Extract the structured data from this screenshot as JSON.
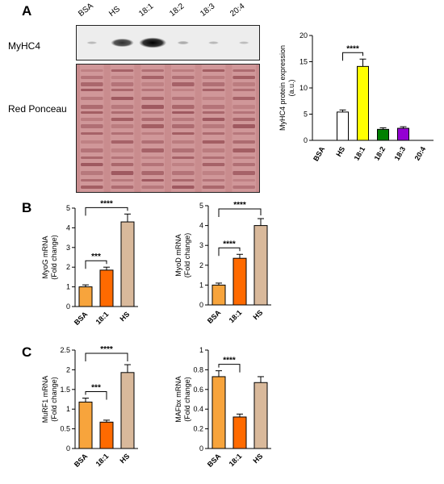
{
  "panels": {
    "A": "A",
    "B": "B",
    "C": "C"
  },
  "blot": {
    "lanes": [
      "BSA",
      "HS",
      "18:1",
      "18:2",
      "18:3",
      "20:4"
    ],
    "myhc4_label": "MyHC4",
    "ponceau_label": "Red Ponceau",
    "myhc4_band_intensity": [
      0.05,
      0.75,
      1.0,
      0.12,
      0.06,
      0.04
    ]
  },
  "chart_data": [
    {
      "id": "A",
      "type": "bar",
      "categories": [
        "BSA",
        "HS",
        "18:1",
        "18:2",
        "18:3",
        "20:4"
      ],
      "values": [
        0,
        5.4,
        14.1,
        2.1,
        2.3,
        0
      ],
      "errors": [
        0,
        0.4,
        1.4,
        0.3,
        0.3,
        0
      ],
      "colors": [
        "#ffffff",
        "#ffffff",
        "#ffff00",
        "#008000",
        "#9400d3",
        "#ffffff"
      ],
      "ylabel": "MyHC4 protein expression\n(a.u.)",
      "ylim": [
        0,
        20
      ],
      "yticks": [
        0,
        5,
        10,
        15,
        20
      ],
      "significance": [
        {
          "from": "HS",
          "to": "18:1",
          "label": "****"
        }
      ]
    },
    {
      "id": "B1",
      "type": "bar",
      "categories": [
        "BSA",
        "18:1",
        "HS"
      ],
      "values": [
        1.0,
        1.85,
        4.3
      ],
      "errors": [
        0.1,
        0.15,
        0.4
      ],
      "colors": [
        "#f7a43c",
        "#ff6a00",
        "#d9b99b"
      ],
      "ylabel": "MyoG mRNA\n(Fold change)",
      "ylim": [
        0,
        5
      ],
      "yticks": [
        0,
        1,
        2,
        3,
        4,
        5
      ],
      "significance": [
        {
          "from": "BSA",
          "to": "18:1",
          "label": "***"
        },
        {
          "from": "BSA",
          "to": "HS",
          "label": "****"
        }
      ]
    },
    {
      "id": "B2",
      "type": "bar",
      "categories": [
        "BSA",
        "18:1",
        "HS"
      ],
      "values": [
        1.0,
        2.35,
        4.0
      ],
      "errors": [
        0.1,
        0.2,
        0.35
      ],
      "colors": [
        "#f7a43c",
        "#ff6a00",
        "#d9b99b"
      ],
      "ylabel": "MyoD mRNA\n(Fold change)",
      "ylim": [
        0,
        5
      ],
      "yticks": [
        0,
        1,
        2,
        3,
        4,
        5
      ],
      "significance": [
        {
          "from": "BSA",
          "to": "18:1",
          "label": "****"
        },
        {
          "from": "BSA",
          "to": "HS",
          "label": "****"
        }
      ]
    },
    {
      "id": "C1",
      "type": "bar",
      "categories": [
        "BSA",
        "18:1",
        "HS"
      ],
      "values": [
        1.18,
        0.67,
        1.93
      ],
      "errors": [
        0.1,
        0.05,
        0.2
      ],
      "colors": [
        "#f7a43c",
        "#ff6a00",
        "#d9b99b"
      ],
      "ylabel": "MuRF1 mRNA\n(Fold change)",
      "ylim": [
        0,
        2.5
      ],
      "yticks": [
        0.0,
        0.5,
        1.0,
        1.5,
        2.0,
        2.5
      ],
      "significance": [
        {
          "from": "BSA",
          "to": "18:1",
          "label": "***"
        },
        {
          "from": "BSA",
          "to": "HS",
          "label": "****"
        }
      ]
    },
    {
      "id": "C2",
      "type": "bar",
      "categories": [
        "BSA",
        "18:1",
        "HS"
      ],
      "values": [
        0.73,
        0.32,
        0.67
      ],
      "errors": [
        0.06,
        0.03,
        0.06
      ],
      "colors": [
        "#f7a43c",
        "#ff6a00",
        "#d9b99b"
      ],
      "ylabel": "MAFbx mRNA\n(Fold change)",
      "ylim": [
        0,
        1.0
      ],
      "yticks": [
        0.0,
        0.2,
        0.4,
        0.6,
        0.8,
        1.0
      ],
      "significance": [
        {
          "from": "BSA",
          "to": "18:1",
          "label": "****"
        }
      ]
    }
  ]
}
